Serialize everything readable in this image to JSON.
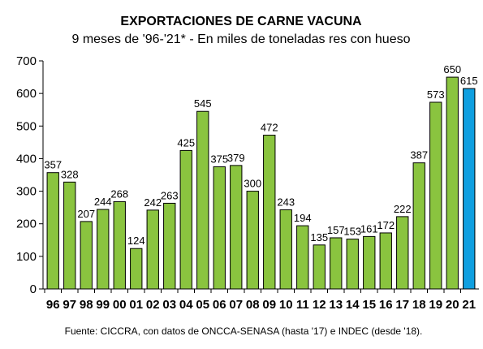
{
  "chart_data": {
    "type": "bar",
    "title": "EXPORTACIONES DE CARNE VACUNA",
    "subtitle": "9 meses de '96-'21* - En miles de toneladas res con hueso",
    "source": "Fuente: CICCRA, con datos de ONCCA-SENASA (hasta '17) e INDEC (desde '18).",
    "categories": [
      "96",
      "97",
      "98",
      "99",
      "00",
      "01",
      "02",
      "03",
      "04",
      "05",
      "06",
      "07",
      "08",
      "09",
      "10",
      "11",
      "12",
      "13",
      "14",
      "15",
      "16",
      "17",
      "18",
      "19",
      "20",
      "21"
    ],
    "values": [
      357,
      328,
      207,
      244,
      268,
      124,
      242,
      263,
      425,
      545,
      375,
      379,
      300,
      472,
      243,
      194,
      135,
      157,
      153,
      161,
      172,
      222,
      387,
      573,
      650,
      615
    ],
    "ylim": [
      0,
      700
    ],
    "yticks": [
      0,
      100,
      200,
      300,
      400,
      500,
      600,
      700
    ],
    "grid": false,
    "bar_color": "#8ac43f",
    "highlight_color": "#0f9fe0",
    "highlight_index": 25
  }
}
